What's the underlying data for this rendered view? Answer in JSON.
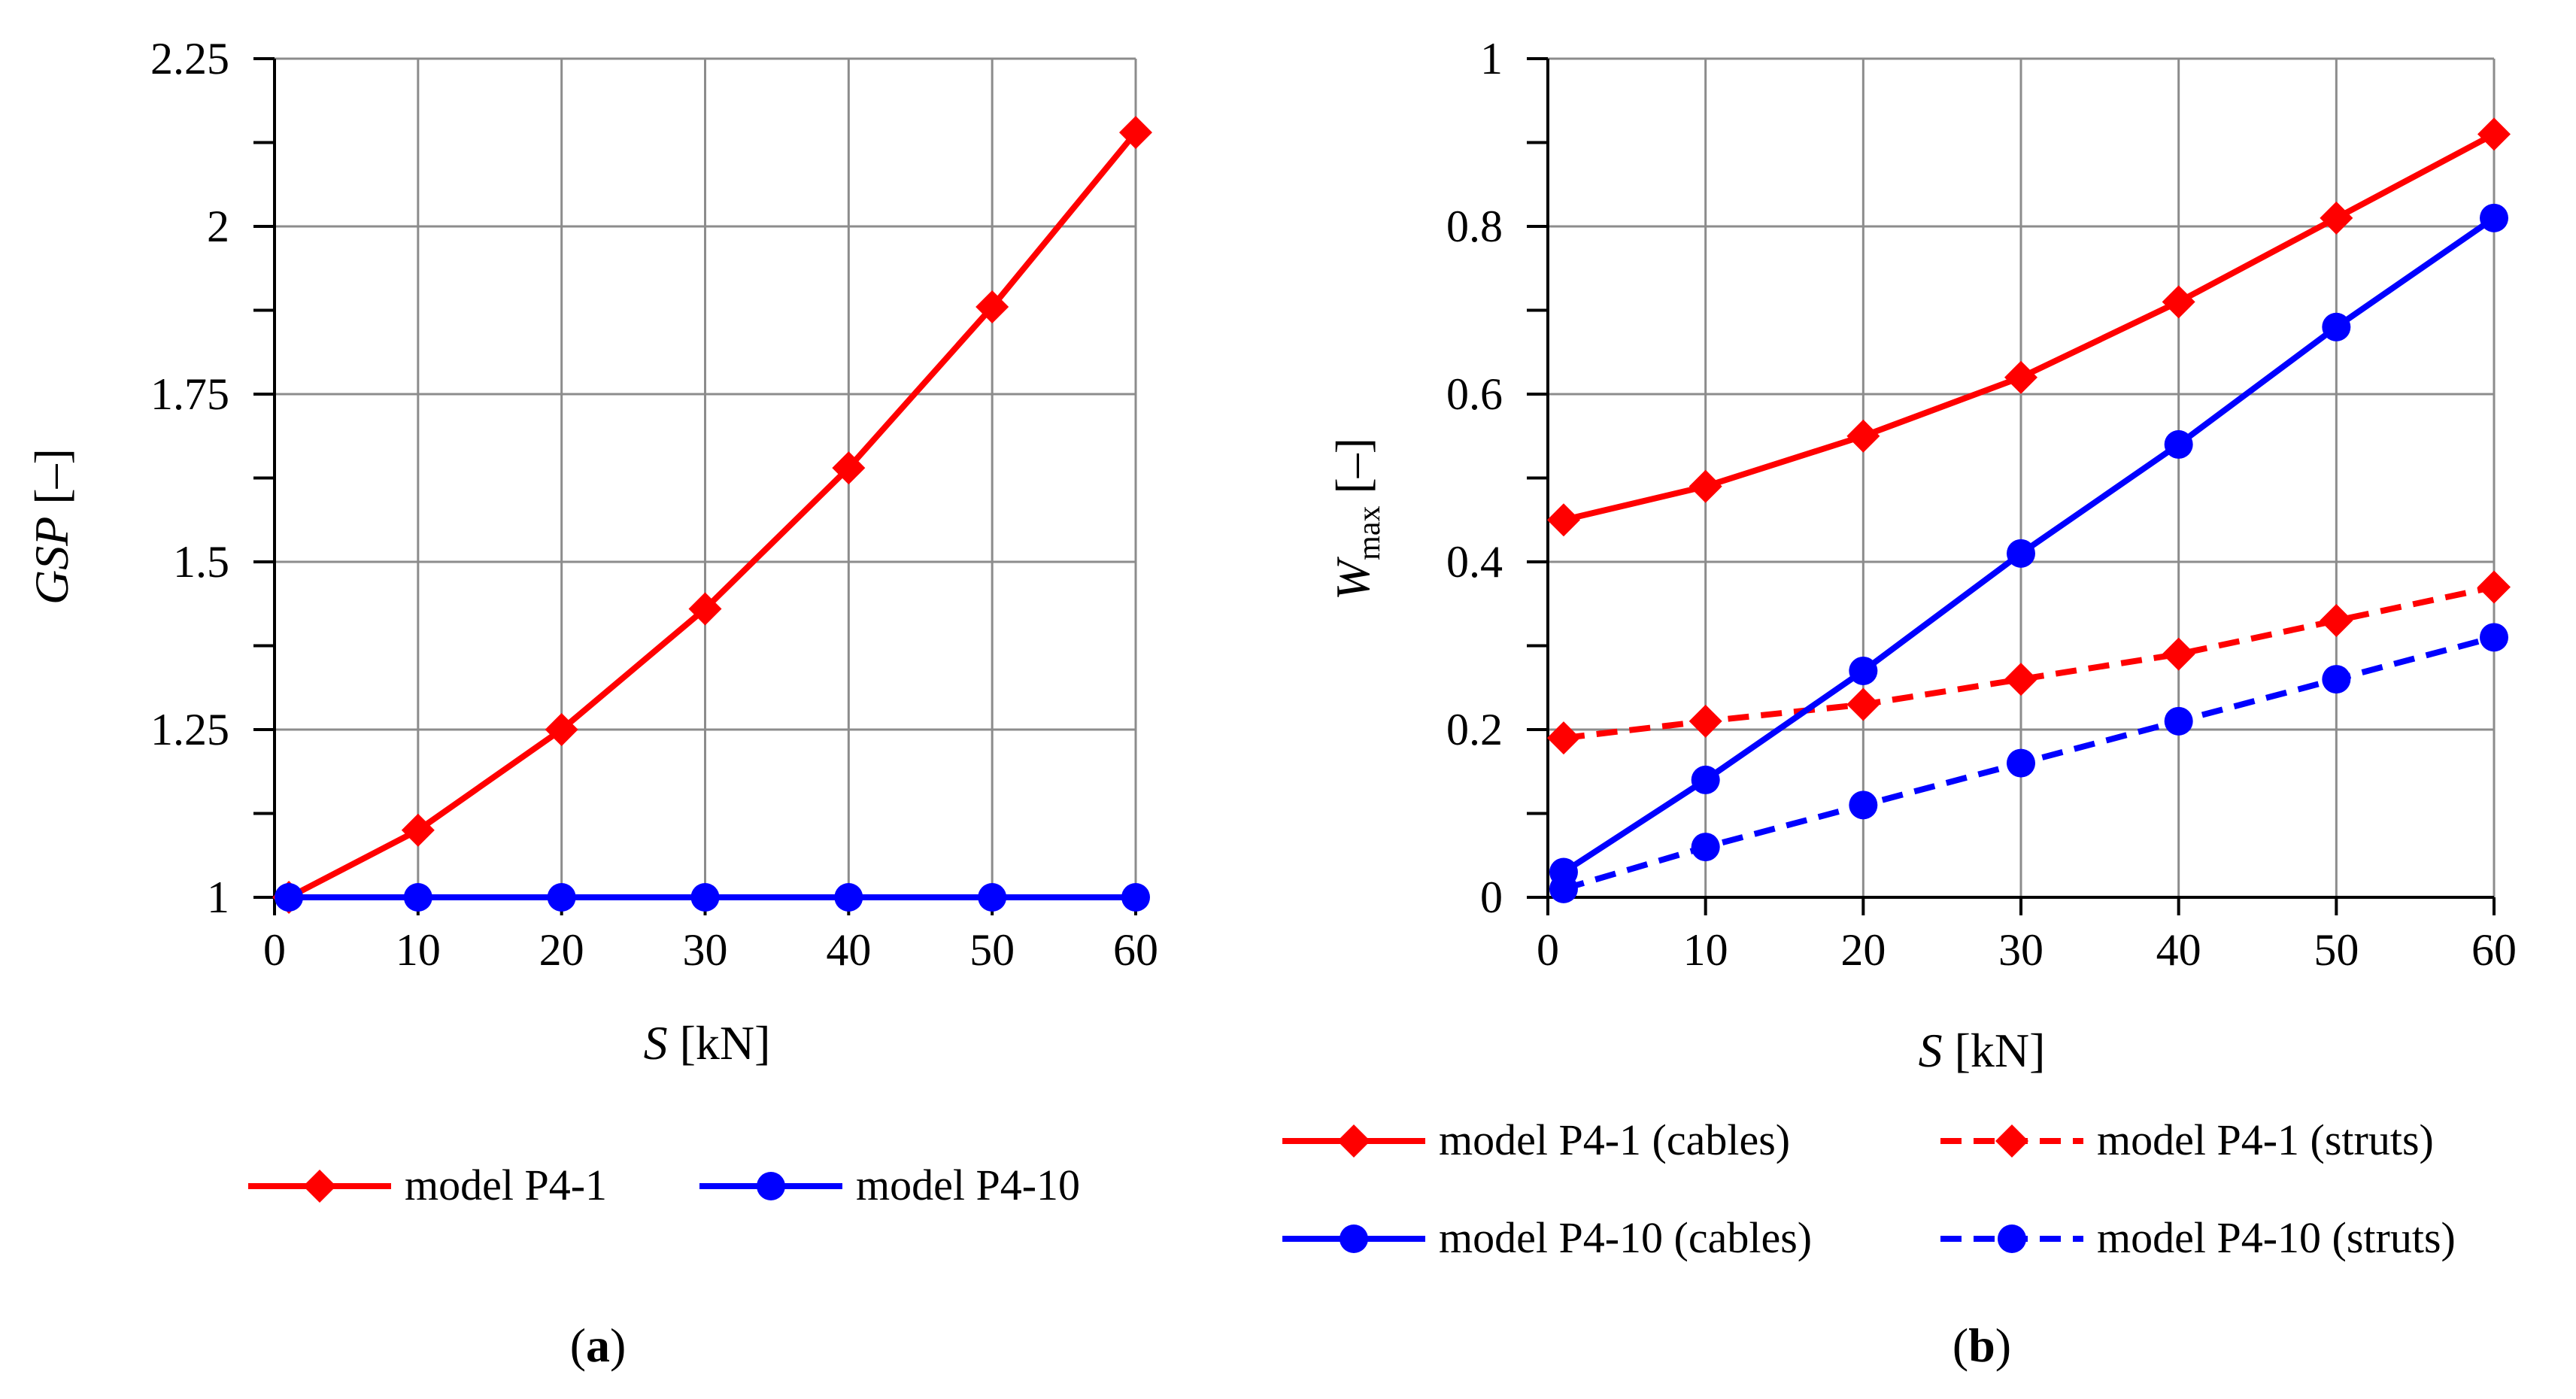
{
  "chart_data": [
    {
      "type": "line",
      "panel_label_open": "(",
      "panel_label_letter": "a",
      "panel_label_close": ")",
      "xlabel_var": "S",
      "xlabel_unit": " [kN]",
      "ylabel_var": "GSP",
      "ylabel_unit": " [–]",
      "xlim": [
        0,
        60
      ],
      "ylim": [
        1,
        2.25
      ],
      "grid": true,
      "legend_position": "bottom",
      "x_tick_labels": [
        "0",
        "10",
        "20",
        "30",
        "40",
        "50",
        "60"
      ],
      "y_tick_labels": [
        "1",
        "1.25",
        "1.5",
        "1.75",
        "2",
        "2.25"
      ],
      "series": [
        {
          "name": "model P4-1",
          "color": "#ff0000",
          "marker": "diamond",
          "linestyle": "solid",
          "x": [
            1,
            10,
            20,
            30,
            40,
            50,
            60
          ],
          "y": [
            1.0,
            1.1,
            1.25,
            1.43,
            1.64,
            1.88,
            2.14
          ]
        },
        {
          "name": "model P4-10",
          "color": "#0000ff",
          "marker": "circle",
          "linestyle": "solid",
          "x": [
            1,
            10,
            20,
            30,
            40,
            50,
            60
          ],
          "y": [
            1.0,
            1.0,
            1.0,
            1.0,
            1.0,
            1.0,
            1.0
          ]
        }
      ]
    },
    {
      "type": "line",
      "panel_label_open": "(",
      "panel_label_letter": "b",
      "panel_label_close": ")",
      "xlabel_var": "S",
      "xlabel_unit": " [kN]",
      "ylabel_var": "W",
      "ylabel_sub": "max",
      "ylabel_unit": " [–]",
      "xlim": [
        0,
        60
      ],
      "ylim": [
        0,
        1
      ],
      "grid": true,
      "legend_position": "bottom",
      "x_tick_labels": [
        "0",
        "10",
        "20",
        "30",
        "40",
        "50",
        "60"
      ],
      "y_tick_labels": [
        "0",
        "0.2",
        "0.4",
        "0.6",
        "0.8",
        "1"
      ],
      "series": [
        {
          "name": "model P4-1 (cables)",
          "color": "#ff0000",
          "marker": "diamond",
          "linestyle": "solid",
          "x": [
            1,
            10,
            20,
            30,
            40,
            50,
            60
          ],
          "y": [
            0.45,
            0.49,
            0.55,
            0.62,
            0.71,
            0.81,
            0.91
          ]
        },
        {
          "name": "model P4-1 (struts)",
          "color": "#ff0000",
          "marker": "diamond",
          "linestyle": "dashed",
          "x": [
            1,
            10,
            20,
            30,
            40,
            50,
            60
          ],
          "y": [
            0.19,
            0.21,
            0.23,
            0.26,
            0.29,
            0.33,
            0.37
          ]
        },
        {
          "name": "model P4-10 (cables)",
          "color": "#0000ff",
          "marker": "circle",
          "linestyle": "solid",
          "x": [
            1,
            10,
            20,
            30,
            40,
            50,
            60
          ],
          "y": [
            0.03,
            0.14,
            0.27,
            0.41,
            0.54,
            0.68,
            0.81
          ]
        },
        {
          "name": "model P4-10 (struts)",
          "color": "#0000ff",
          "marker": "circle",
          "linestyle": "dashed",
          "x": [
            1,
            10,
            20,
            30,
            40,
            50,
            60
          ],
          "y": [
            0.01,
            0.06,
            0.11,
            0.16,
            0.21,
            0.26,
            0.31
          ]
        }
      ]
    }
  ]
}
